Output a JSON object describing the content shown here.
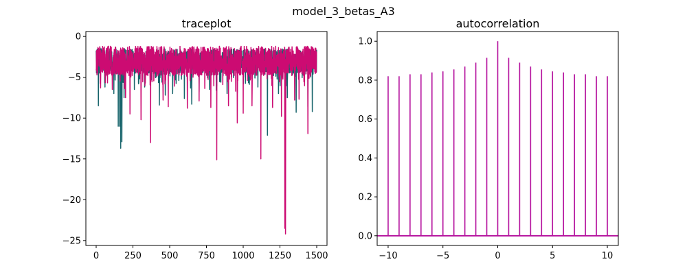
{
  "figure": {
    "suptitle": "model_3_betas_A3"
  },
  "chart_data": [
    {
      "type": "line",
      "title": "traceplot",
      "xlabel": "",
      "ylabel": "",
      "xlim": [
        -70,
        1570
      ],
      "ylim": [
        -25.6,
        0.6
      ],
      "xticks": [
        0,
        250,
        500,
        750,
        1000,
        1250,
        1500
      ],
      "yticks": [
        0,
        -5,
        -10,
        -15,
        -20,
        -25
      ],
      "n_draws": 1500,
      "series": [
        {
          "color": "#17646b",
          "base_range": [
            -4.5,
            -1.5
          ],
          "dips": [
            {
              "x": 15,
              "y": -8.5
            },
            {
              "x": 60,
              "y": -6.2
            },
            {
              "x": 120,
              "y": -7.0
            },
            {
              "x": 150,
              "y": -11.0
            },
            {
              "x": 160,
              "y": -11.0
            },
            {
              "x": 167,
              "y": -13.7
            },
            {
              "x": 175,
              "y": -12.9
            },
            {
              "x": 190,
              "y": -7.5
            },
            {
              "x": 260,
              "y": -6.5
            },
            {
              "x": 330,
              "y": -6.2
            },
            {
              "x": 430,
              "y": -8.4
            },
            {
              "x": 470,
              "y": -7.2
            },
            {
              "x": 520,
              "y": -7.0
            },
            {
              "x": 600,
              "y": -7.6
            },
            {
              "x": 650,
              "y": -8.3
            },
            {
              "x": 700,
              "y": -6.8
            },
            {
              "x": 770,
              "y": -6.5
            },
            {
              "x": 820,
              "y": -6.1
            },
            {
              "x": 890,
              "y": -7.0
            },
            {
              "x": 960,
              "y": -6.9
            },
            {
              "x": 1100,
              "y": -6.2
            },
            {
              "x": 1165,
              "y": -12.1
            },
            {
              "x": 1240,
              "y": -7.0
            },
            {
              "x": 1300,
              "y": -7.5
            },
            {
              "x": 1360,
              "y": -9.3
            },
            {
              "x": 1440,
              "y": -8.6
            },
            {
              "x": 1470,
              "y": -9.2
            }
          ]
        },
        {
          "color": "#cc0b72",
          "base_range": [
            -4.8,
            -1.2
          ],
          "dips": [
            {
              "x": 30,
              "y": -6.3
            },
            {
              "x": 110,
              "y": -6.5
            },
            {
              "x": 200,
              "y": -7.5
            },
            {
              "x": 230,
              "y": -9.5
            },
            {
              "x": 305,
              "y": -10.2
            },
            {
              "x": 370,
              "y": -13.0
            },
            {
              "x": 455,
              "y": -7.8
            },
            {
              "x": 490,
              "y": -8.6
            },
            {
              "x": 620,
              "y": -8.8
            },
            {
              "x": 700,
              "y": -7.9
            },
            {
              "x": 780,
              "y": -8.7
            },
            {
              "x": 820,
              "y": -15.1
            },
            {
              "x": 900,
              "y": -8.5
            },
            {
              "x": 960,
              "y": -10.6
            },
            {
              "x": 1000,
              "y": -9.4
            },
            {
              "x": 1060,
              "y": -8.5
            },
            {
              "x": 1120,
              "y": -15.0
            },
            {
              "x": 1200,
              "y": -8.7
            },
            {
              "x": 1260,
              "y": -9.8
            },
            {
              "x": 1283,
              "y": -23.5
            },
            {
              "x": 1288,
              "y": -24.2
            },
            {
              "x": 1350,
              "y": -7.8
            },
            {
              "x": 1380,
              "y": -7.7
            },
            {
              "x": 1440,
              "y": -11.9
            }
          ]
        }
      ]
    },
    {
      "type": "bar",
      "title": "autocorrelation",
      "xlabel": "",
      "ylabel": "",
      "xlim": [
        -11,
        11
      ],
      "ylim": [
        -0.05,
        1.05
      ],
      "xticks": [
        -10,
        -5,
        0,
        5,
        10
      ],
      "yticks": [
        0.0,
        0.2,
        0.4,
        0.6,
        0.8,
        1.0
      ],
      "color": "#b5139e",
      "lags": [
        -10,
        -9,
        -8,
        -7,
        -6,
        -5,
        -4,
        -3,
        -2,
        -1,
        0,
        1,
        2,
        3,
        4,
        5,
        6,
        7,
        8,
        9,
        10
      ],
      "values": [
        0.82,
        0.82,
        0.83,
        0.83,
        0.84,
        0.845,
        0.855,
        0.87,
        0.89,
        0.915,
        1.0,
        0.915,
        0.89,
        0.87,
        0.855,
        0.845,
        0.84,
        0.83,
        0.83,
        0.82,
        0.82
      ]
    }
  ]
}
